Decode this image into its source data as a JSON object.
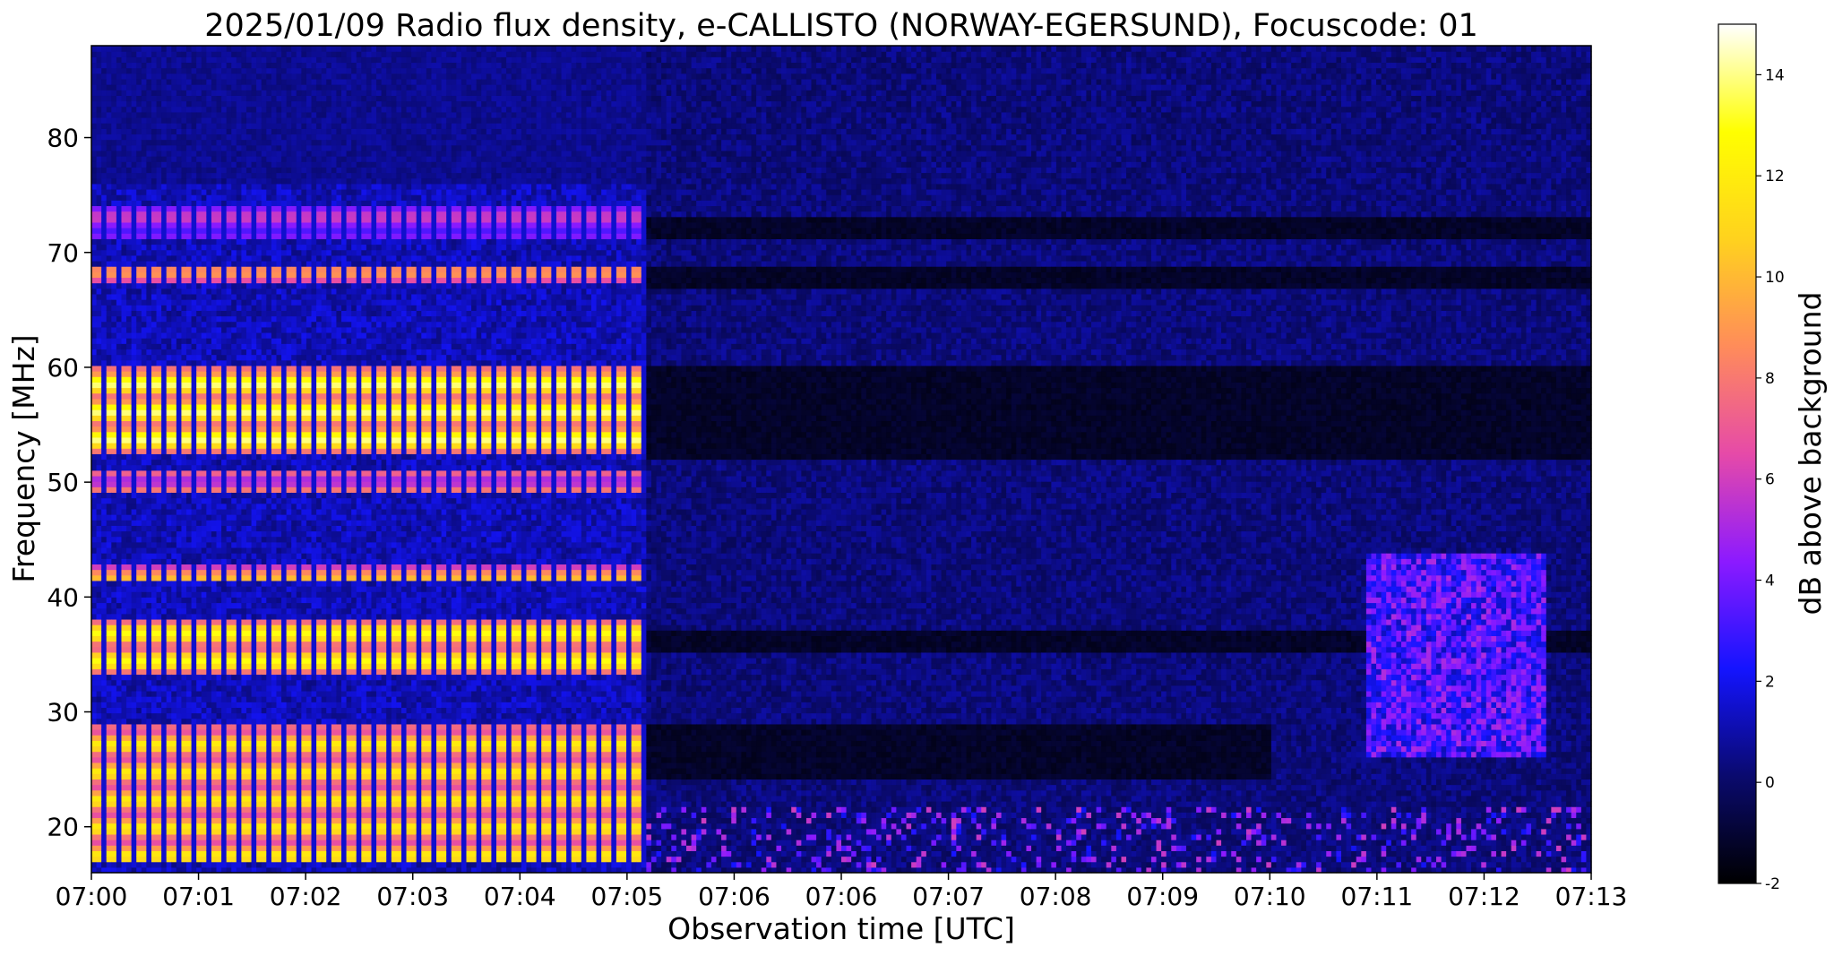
{
  "chart_data": {
    "type": "heatmap",
    "title": "2025/01/09  Radio flux density, e-CALLISTO (NORWAY-EGERSUND), Focuscode: 01",
    "xlabel": "Observation time [UTC]",
    "ylabel": "Frequency [MHz]",
    "colorbar_label": "dB above background",
    "colormap": "gnuplot2",
    "colormap_stops": [
      "#000000",
      "#0a0a6e",
      "#1414ff",
      "#8c1aff",
      "#e64aa8",
      "#ff8c5a",
      "#ffd21e",
      "#ffff00",
      "#ffffff"
    ],
    "xlim": [
      0,
      14
    ],
    "x_ticks": [
      {
        "label": "07:00",
        "minute": 0
      },
      {
        "label": "07:01",
        "minute": 1
      },
      {
        "label": "07:02",
        "minute": 2
      },
      {
        "label": "07:03",
        "minute": 3
      },
      {
        "label": "07:04",
        "minute": 4
      },
      {
        "label": "07:05",
        "minute": 5
      },
      {
        "label": "07:06",
        "minute": 6
      },
      {
        "label": "07:06",
        "minute": 7
      },
      {
        "label": "07:07",
        "minute": 8
      },
      {
        "label": "07:08",
        "minute": 9
      },
      {
        "label": "07:09",
        "minute": 10
      },
      {
        "label": "07:10",
        "minute": 11
      },
      {
        "label": "07:11",
        "minute": 12
      },
      {
        "label": "07:12",
        "minute": 13
      },
      {
        "label": "07:13",
        "minute": 14
      }
    ],
    "ylim": [
      16,
      88
    ],
    "y_ticks": [
      20,
      30,
      40,
      50,
      60,
      70,
      80
    ],
    "clim": [
      -2,
      15
    ],
    "colorbar_ticks": [
      -2,
      0,
      2,
      4,
      6,
      8,
      10,
      12,
      14
    ],
    "features": {
      "broadband_interference_until_minute": 5.2,
      "strong_bands_mhz": [
        {
          "min": 17,
          "max": 29,
          "db": 12
        },
        {
          "min": 33.5,
          "max": 38,
          "db": 13
        },
        {
          "min": 41.5,
          "max": 43,
          "db": 10
        },
        {
          "min": 49,
          "max": 51,
          "db": 9
        },
        {
          "min": 52.5,
          "max": 60,
          "db": 14
        },
        {
          "min": 67.5,
          "max": 69,
          "db": 9
        },
        {
          "min": 71,
          "max": 74,
          "db": 6
        }
      ],
      "burst_region": {
        "minute_start": 11.9,
        "minute_end": 13.6,
        "freq_min": 26,
        "freq_max": 44,
        "db": 4
      }
    }
  }
}
